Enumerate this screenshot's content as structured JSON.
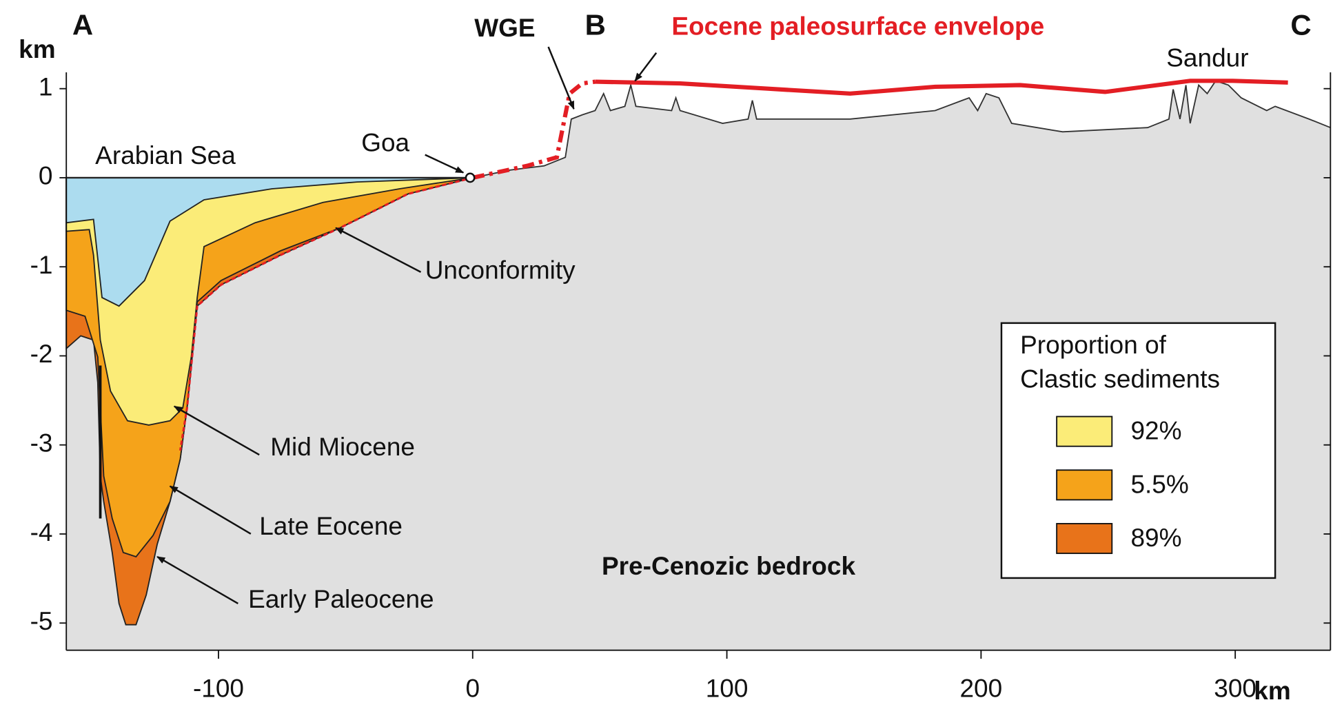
{
  "axes": {
    "y_unit": "km",
    "x_unit": "km",
    "yticks": [
      1,
      0,
      -1,
      -2,
      -3,
      -4,
      -5
    ],
    "xticks": [
      -100,
      0,
      100,
      200,
      300
    ]
  },
  "section_labels": {
    "a": "A",
    "b": "B",
    "c": "C"
  },
  "labels": {
    "wge": "WGE",
    "envelope": "Eocene paleosurface envelope",
    "sandur": "Sandur",
    "sea": "Arabian Sea",
    "goa": "Goa",
    "unconformity": "Unconformity",
    "mid_miocene": "Mid Miocene",
    "late_eocene": "Late Eocene",
    "early_paleocene": "Early Paleocene",
    "bedrock": "Pre-Cenozic bedrock"
  },
  "legend": {
    "title": [
      "Proportion of",
      "Clastic sediments"
    ],
    "items": [
      "92%",
      "5.5%",
      "89%"
    ]
  }
}
